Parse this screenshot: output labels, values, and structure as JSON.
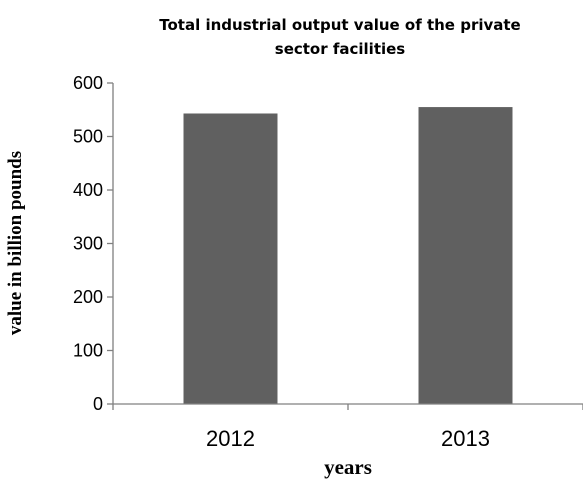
{
  "chart_data": {
    "type": "bar",
    "title_lines": [
      "Total industrial output value of the private",
      "sector facilities"
    ],
    "categories": [
      "2012",
      "2013"
    ],
    "series": [
      {
        "values": [
          543,
          555
        ],
        "color": "#606060"
      }
    ],
    "xlabel": "years",
    "ylabel": "value in billion pounds",
    "ylim": [
      0,
      600
    ],
    "yticks": [
      "0",
      "100",
      "200",
      "300",
      "400",
      "500",
      "600"
    ],
    "grid": false,
    "legend": "none"
  }
}
